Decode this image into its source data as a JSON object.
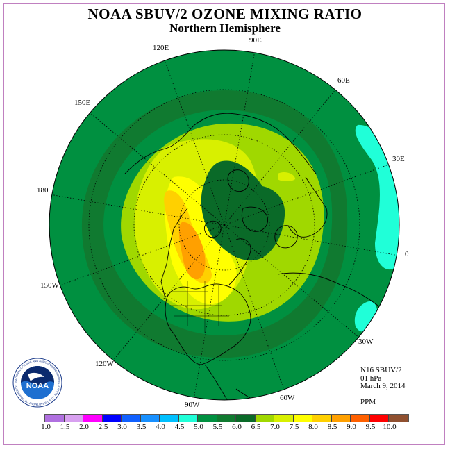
{
  "title": "NOAA SBUV/2 OZONE MIXING RATIO",
  "subtitle": "Northern Hemisphere",
  "longitude_labels": [
    "90E",
    "60E",
    "30E",
    "0",
    "30W",
    "60W",
    "90W",
    "120W",
    "150W",
    "180",
    "150E",
    "120E"
  ],
  "info": {
    "satellite": "N16 SBUV/2",
    "level": "01 hPa",
    "date": "March 9, 2014",
    "units": "PPM"
  },
  "colorbar": {
    "ticks": [
      "1.0",
      "1.5",
      "2.0",
      "2.5",
      "3.0",
      "3.5",
      "4.0",
      "4.5",
      "5.0",
      "5.5",
      "6.0",
      "6.5",
      "7.0",
      "7.5",
      "8.0",
      "8.5",
      "9.0",
      "9.5",
      "10.0"
    ],
    "colors": [
      "#b070e0",
      "#d8a0f0",
      "#ff00ff",
      "#0000ff",
      "#1060ff",
      "#1890ff",
      "#00c0ff",
      "#20ffd8",
      "#009040",
      "#107a30",
      "#0a6a28",
      "#a0d800",
      "#d8f000",
      "#ffff00",
      "#ffd000",
      "#ffa000",
      "#ff6000",
      "#ff0000",
      "#905030"
    ]
  },
  "logo": {
    "text": "NOAA",
    "ring_text": "NATIONAL OCEANIC AND ATMOSPHERIC ADMINISTRATION · U.S. DEPARTMENT OF COMMERCE"
  }
}
